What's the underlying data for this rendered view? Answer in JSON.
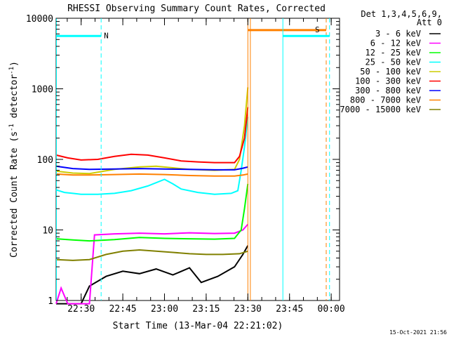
{
  "chart_data": {
    "type": "line",
    "title": "RHESSI Observing Summary Count Rates, Corrected",
    "xlabel": "Start Time (13-Mar-04 22:21:02)",
    "ylabel": "Corrected Count Rate (s",
    "ylabel_sup1": "-1",
    "ylabel_mid": " detector",
    "ylabel_sup2": "-1",
    "ylabel_end": ")",
    "yscale": "log",
    "ylim": [
      1,
      10000
    ],
    "y_ticks": [
      "1",
      "10",
      "100",
      "1000",
      "10000"
    ],
    "xlim": [
      22.35,
      24.05
    ],
    "x_ticks": [
      {
        "label": "22:30",
        "x": 22.5
      },
      {
        "label": "22:45",
        "x": 22.75
      },
      {
        "label": "23:00",
        "x": 23.0
      },
      {
        "label": "23:15",
        "x": 23.25
      },
      {
        "label": "23:30",
        "x": 23.5
      },
      {
        "label": "23:45",
        "x": 23.75
      },
      {
        "label": "00:00",
        "x": 24.0
      }
    ],
    "legend_header_1": "Det 1,3,4,5,6,9,",
    "legend_header_2": "Att 0",
    "legend_position": "outside-right",
    "timestamp": "15-Oct-2021 21:56",
    "series": [
      {
        "name": "3 - 6 keV",
        "color": "#000000",
        "points": [
          [
            22.35,
            0.9
          ],
          [
            22.5,
            0.9
          ],
          [
            22.55,
            1.6
          ],
          [
            22.65,
            2.2
          ],
          [
            22.75,
            2.6
          ],
          [
            22.85,
            2.4
          ],
          [
            22.95,
            2.8
          ],
          [
            23.05,
            2.3
          ],
          [
            23.15,
            2.9
          ],
          [
            23.22,
            1.8
          ],
          [
            23.32,
            2.2
          ],
          [
            23.42,
            3.0
          ],
          [
            23.47,
            4.5
          ],
          [
            23.5,
            6.0
          ]
        ]
      },
      {
        "name": "6 - 12 keV",
        "color": "#ff00ff",
        "points": [
          [
            22.35,
            0.9
          ],
          [
            22.38,
            1.5
          ],
          [
            22.42,
            0.9
          ],
          [
            22.55,
            0.9
          ],
          [
            22.58,
            8.5
          ],
          [
            22.7,
            8.8
          ],
          [
            22.85,
            9.0
          ],
          [
            23.0,
            8.8
          ],
          [
            23.15,
            9.1
          ],
          [
            23.3,
            8.9
          ],
          [
            23.42,
            9.0
          ],
          [
            23.47,
            10.0
          ],
          [
            23.5,
            12.0
          ]
        ]
      },
      {
        "name": "12 - 25 keV",
        "color": "#00ff00",
        "points": [
          [
            22.35,
            7.5
          ],
          [
            22.45,
            7.2
          ],
          [
            22.55,
            7.0
          ],
          [
            22.7,
            7.3
          ],
          [
            22.85,
            7.8
          ],
          [
            23.0,
            7.6
          ],
          [
            23.15,
            7.5
          ],
          [
            23.3,
            7.4
          ],
          [
            23.42,
            7.6
          ],
          [
            23.46,
            10.0
          ],
          [
            23.48,
            20.0
          ],
          [
            23.5,
            45.0
          ]
        ]
      },
      {
        "name": "25 - 50 keV",
        "color": "#00ffff",
        "points": [
          [
            22.35,
            37
          ],
          [
            22.4,
            34
          ],
          [
            22.45,
            33
          ],
          [
            22.5,
            32
          ],
          [
            22.6,
            32
          ],
          [
            22.7,
            33
          ],
          [
            22.8,
            36
          ],
          [
            22.9,
            42
          ],
          [
            23.0,
            52
          ],
          [
            23.05,
            45
          ],
          [
            23.1,
            38
          ],
          [
            23.2,
            34
          ],
          [
            23.3,
            32
          ],
          [
            23.4,
            33
          ],
          [
            23.44,
            36
          ],
          [
            23.46,
            70
          ],
          [
            23.48,
            150
          ],
          [
            23.5,
            400
          ]
        ]
      },
      {
        "name": "50 - 100 keV",
        "color": "#cccc00",
        "points": [
          [
            22.35,
            68
          ],
          [
            22.45,
            64
          ],
          [
            22.55,
            63
          ],
          [
            22.7,
            72
          ],
          [
            22.85,
            78
          ],
          [
            22.95,
            80
          ],
          [
            23.05,
            76
          ],
          [
            23.15,
            72
          ],
          [
            23.3,
            70
          ],
          [
            23.42,
            72
          ],
          [
            23.45,
            100
          ],
          [
            23.48,
            300
          ],
          [
            23.5,
            1050
          ]
        ]
      },
      {
        "name": "100 - 300 keV",
        "color": "#ff0000",
        "points": [
          [
            22.35,
            115
          ],
          [
            22.42,
            105
          ],
          [
            22.5,
            98
          ],
          [
            22.6,
            100
          ],
          [
            22.7,
            110
          ],
          [
            22.8,
            118
          ],
          [
            22.9,
            115
          ],
          [
            23.0,
            105
          ],
          [
            23.1,
            95
          ],
          [
            23.2,
            92
          ],
          [
            23.3,
            90
          ],
          [
            23.42,
            90
          ],
          [
            23.45,
            110
          ],
          [
            23.48,
            200
          ],
          [
            23.5,
            550
          ]
        ]
      },
      {
        "name": "300 - 800 keV",
        "color": "#0000ff",
        "points": [
          [
            22.35,
            80
          ],
          [
            22.45,
            74
          ],
          [
            22.55,
            72
          ],
          [
            22.7,
            73
          ],
          [
            22.85,
            74
          ],
          [
            23.0,
            73
          ],
          [
            23.15,
            72
          ],
          [
            23.3,
            71
          ],
          [
            23.42,
            71
          ],
          [
            23.47,
            75
          ],
          [
            23.5,
            78
          ]
        ]
      },
      {
        "name": "800 - 7000 keV",
        "color": "#ff8000",
        "points": [
          [
            22.35,
            62
          ],
          [
            22.45,
            60
          ],
          [
            22.55,
            60
          ],
          [
            22.7,
            61
          ],
          [
            22.85,
            62
          ],
          [
            23.0,
            61
          ],
          [
            23.15,
            59
          ],
          [
            23.3,
            58
          ],
          [
            23.42,
            58
          ],
          [
            23.47,
            60
          ],
          [
            23.5,
            62
          ]
        ]
      },
      {
        "name": "7000 - 15000 keV",
        "color": "#808000",
        "points": [
          [
            22.35,
            3.8
          ],
          [
            22.45,
            3.7
          ],
          [
            22.55,
            3.8
          ],
          [
            22.65,
            4.5
          ],
          [
            22.75,
            5.0
          ],
          [
            22.85,
            5.2
          ],
          [
            22.95,
            5.0
          ],
          [
            23.05,
            4.8
          ],
          [
            23.15,
            4.6
          ],
          [
            23.25,
            4.5
          ],
          [
            23.35,
            4.5
          ],
          [
            23.45,
            4.6
          ],
          [
            23.5,
            5.0
          ]
        ]
      }
    ],
    "markers": [
      {
        "label": "N",
        "color": "#00ffff",
        "x_start": 22.35,
        "x_end": 22.62,
        "y": 5600,
        "dash_at": 22.62
      },
      {
        "label": "S",
        "color": "#ff8000",
        "x_start": 23.5,
        "x_end": 23.97,
        "y": 6800,
        "dash_at": 23.97,
        "solid_at": 23.515
      },
      {
        "label": "",
        "color": "#00ffff",
        "x_start": 23.71,
        "x_end": 23.99,
        "y": 5600,
        "dash_at": 23.99,
        "solid_at": 23.71
      }
    ],
    "flare_line": {
      "color": "#ff8000",
      "x": 23.5
    },
    "start_line": {
      "color": "#00ffff",
      "x": 22.352
    }
  }
}
